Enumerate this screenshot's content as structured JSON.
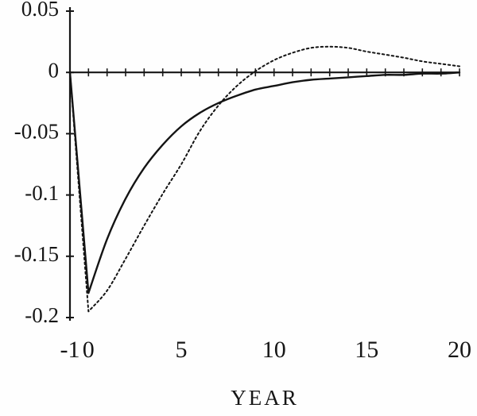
{
  "figure": {
    "background": "#fefefe",
    "ink_color": "#161616"
  },
  "chart_data": {
    "type": "line",
    "title": "",
    "xlabel": "YEAR",
    "ylabel": "",
    "xlim": [
      -1,
      20
    ],
    "ylim": [
      -0.2,
      0.05
    ],
    "grid": false,
    "legend": "none",
    "x_ticks": {
      "values": [
        -1,
        0,
        5,
        10,
        15,
        20
      ],
      "labels": [
        "-1",
        "0",
        "5",
        "10",
        "15",
        "20"
      ]
    },
    "x_minor_tick_step": 1,
    "y_ticks": {
      "values": [
        0.05,
        0,
        -0.05,
        -0.1,
        -0.15,
        -0.2
      ],
      "labels": [
        "0.05",
        "0",
        "-0.05",
        "-0.1",
        "-0.15",
        "-0.2"
      ]
    },
    "x": [
      -1,
      0,
      1,
      2,
      3,
      4,
      5,
      6,
      7,
      8,
      9,
      10,
      11,
      12,
      13,
      14,
      15,
      16,
      17,
      18,
      19,
      20
    ],
    "series": [
      {
        "name": "solid-response",
        "style": "solid",
        "color": "#141414",
        "values": [
          0,
          -0.18,
          -0.136,
          -0.103,
          -0.078,
          -0.059,
          -0.044,
          -0.033,
          -0.025,
          -0.019,
          -0.014,
          -0.011,
          -0.008,
          -0.006,
          -0.005,
          -0.004,
          -0.003,
          -0.002,
          -0.002,
          -0.001,
          -0.001,
          0
        ]
      },
      {
        "name": "dashed-response",
        "style": "dashed",
        "color": "#141414",
        "values": [
          0,
          -0.195,
          -0.178,
          -0.152,
          -0.125,
          -0.099,
          -0.075,
          -0.048,
          -0.027,
          -0.011,
          0.001,
          0.01,
          0.016,
          0.02,
          0.021,
          0.02,
          0.017,
          0.0145,
          0.012,
          0.009,
          0.007,
          0.005
        ]
      }
    ]
  }
}
